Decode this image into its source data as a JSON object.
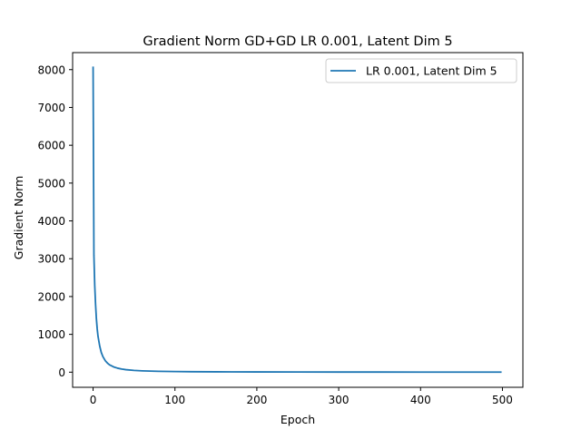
{
  "chart_data": {
    "type": "line",
    "title": "Gradient Norm GD+GD LR 0.001, Latent Dim 5",
    "xlabel": "Epoch",
    "ylabel": "Gradient Norm",
    "xlim": [
      -25,
      525
    ],
    "ylim": [
      -400,
      8450
    ],
    "xticks": [
      0,
      100,
      200,
      300,
      400,
      500
    ],
    "yticks": [
      0,
      1000,
      2000,
      3000,
      4000,
      5000,
      6000,
      7000,
      8000
    ],
    "grid": false,
    "legend_position": "top-right",
    "series": [
      {
        "name": "LR 0.001, Latent Dim 5",
        "color": "#1f77b4",
        "x": [
          0,
          1,
          2,
          3,
          4,
          5,
          6,
          8,
          10,
          12,
          15,
          18,
          20,
          25,
          30,
          35,
          40,
          50,
          60,
          70,
          80,
          100,
          120,
          150,
          200,
          250,
          300,
          350,
          400,
          450,
          499
        ],
        "y": [
          8080,
          3100,
          2300,
          1800,
          1420,
          1150,
          950,
          700,
          520,
          410,
          300,
          230,
          195,
          140,
          105,
          82,
          66,
          46,
          35,
          28,
          23,
          16,
          12,
          9,
          6,
          4.5,
          3.5,
          3,
          2.5,
          2.2,
          2
        ]
      }
    ]
  }
}
